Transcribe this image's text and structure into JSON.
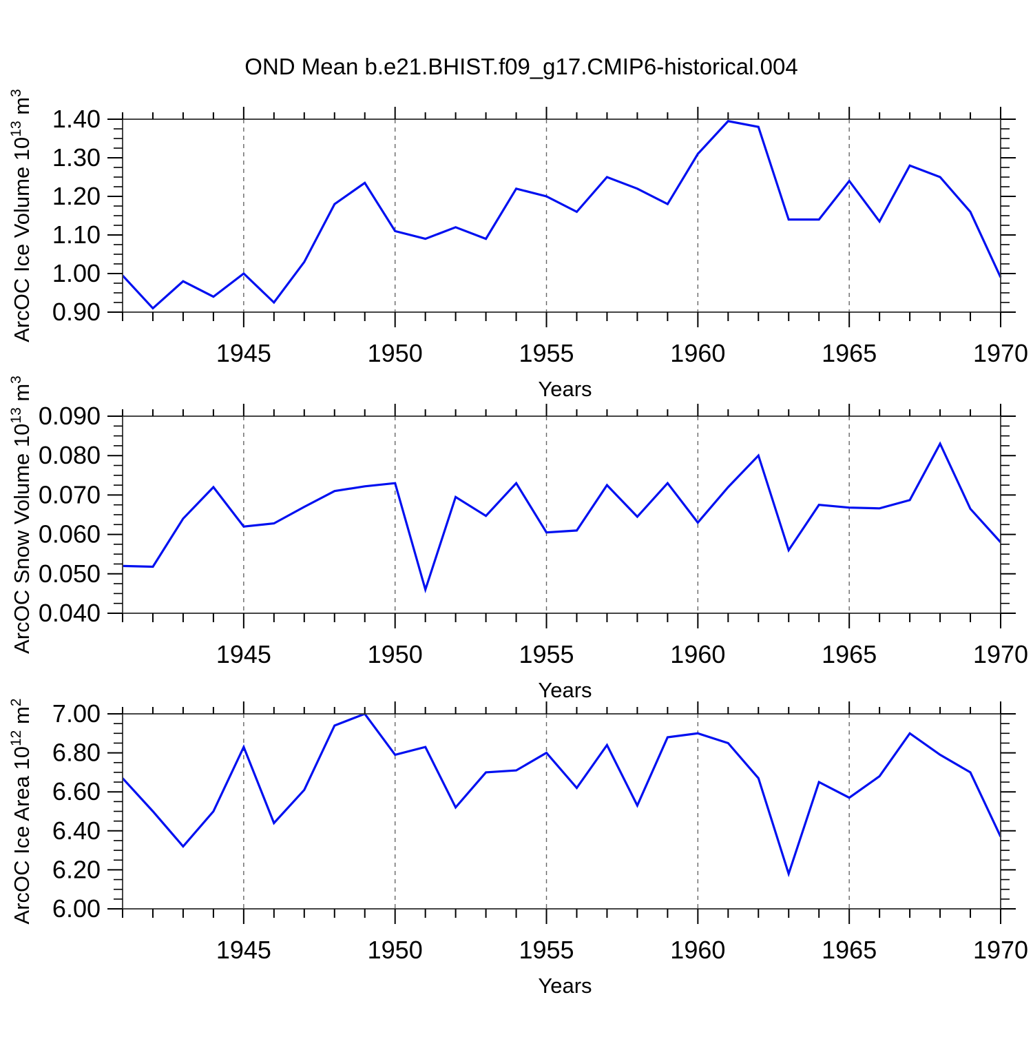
{
  "title": "OND Mean b.e21.BHIST.f09_g17.CMIP6-historical.004",
  "colors": {
    "line": "#0010f0",
    "grid": "#666666",
    "frame": "#444444",
    "tick": "#000000",
    "text": "#000000",
    "background": "#ffffff"
  },
  "chart_data": {
    "type": "line",
    "x_label": "Years",
    "xlim": [
      1941,
      1970
    ],
    "years": [
      1941,
      1942,
      1943,
      1944,
      1945,
      1946,
      1947,
      1948,
      1949,
      1950,
      1951,
      1952,
      1953,
      1954,
      1955,
      1956,
      1957,
      1958,
      1959,
      1960,
      1961,
      1962,
      1963,
      1964,
      1965,
      1966,
      1967,
      1968,
      1969,
      1970
    ],
    "xtick_labels": [
      "1945",
      "1950",
      "1955",
      "1960",
      "1965",
      "1970"
    ],
    "grid_years": [
      1945,
      1950,
      1955,
      1960,
      1965
    ],
    "grid_style": "vertical-dashed",
    "legend": "none",
    "panels": [
      {
        "name": "ice-volume",
        "ylabel_text": "ArcOC Ice Volume 10^13 m^3",
        "ylabel_parts": [
          {
            "t": "ArcOC Ice Volume 10"
          },
          {
            "t": "13",
            "sup": true
          },
          {
            "t": " m"
          },
          {
            "t": "3",
            "sup": true
          }
        ],
        "ylim": [
          0.9,
          1.4
        ],
        "ytick_labels": [
          "0.90",
          "1.00",
          "1.10",
          "1.20",
          "1.30",
          "1.40"
        ],
        "yminor_step": 0.025,
        "values": [
          0.995,
          0.91,
          0.98,
          0.94,
          1.0,
          0.925,
          1.03,
          1.18,
          1.235,
          1.11,
          1.09,
          1.12,
          1.09,
          1.22,
          1.2,
          1.16,
          1.25,
          1.22,
          1.18,
          1.31,
          1.395,
          1.38,
          1.14,
          1.14,
          1.24,
          1.135,
          1.28,
          1.25,
          1.16,
          0.99
        ]
      },
      {
        "name": "snow-volume",
        "ylabel_text": "ArcOC Snow Volume 10^13 m^3",
        "ylabel_parts": [
          {
            "t": "ArcOC Snow Volume 10"
          },
          {
            "t": "13",
            "sup": true
          },
          {
            "t": " m"
          },
          {
            "t": "3",
            "sup": true
          }
        ],
        "ylim": [
          0.04,
          0.09
        ],
        "ytick_labels": [
          "0.040",
          "0.050",
          "0.060",
          "0.070",
          "0.080",
          "0.090"
        ],
        "yminor_step": 0.0025,
        "values": [
          0.052,
          0.0518,
          0.064,
          0.072,
          0.062,
          0.0628,
          0.067,
          0.071,
          0.0722,
          0.073,
          0.046,
          0.0695,
          0.0647,
          0.073,
          0.0605,
          0.061,
          0.0725,
          0.0645,
          0.073,
          0.063,
          0.072,
          0.08,
          0.056,
          0.0675,
          0.0668,
          0.0666,
          0.0687,
          0.083,
          0.0665,
          0.058
        ]
      },
      {
        "name": "ice-area",
        "ylabel_text": "ArcOC Ice Area 10^12 m^2",
        "ylabel_parts": [
          {
            "t": "ArcOC Ice Area 10"
          },
          {
            "t": "12",
            "sup": true
          },
          {
            "t": " m"
          },
          {
            "t": "2",
            "sup": true
          }
        ],
        "ylim": [
          6.0,
          7.0
        ],
        "ytick_labels": [
          "6.00",
          "6.20",
          "6.40",
          "6.60",
          "6.80",
          "7.00"
        ],
        "yminor_step": 0.05,
        "values": [
          6.67,
          6.5,
          6.32,
          6.5,
          6.83,
          6.44,
          6.61,
          6.94,
          7.0,
          6.79,
          6.83,
          6.52,
          6.7,
          6.71,
          6.8,
          6.62,
          6.84,
          6.53,
          6.88,
          6.9,
          6.85,
          6.67,
          6.18,
          6.65,
          6.57,
          6.68,
          6.9,
          6.79,
          6.7,
          6.37
        ]
      }
    ]
  }
}
